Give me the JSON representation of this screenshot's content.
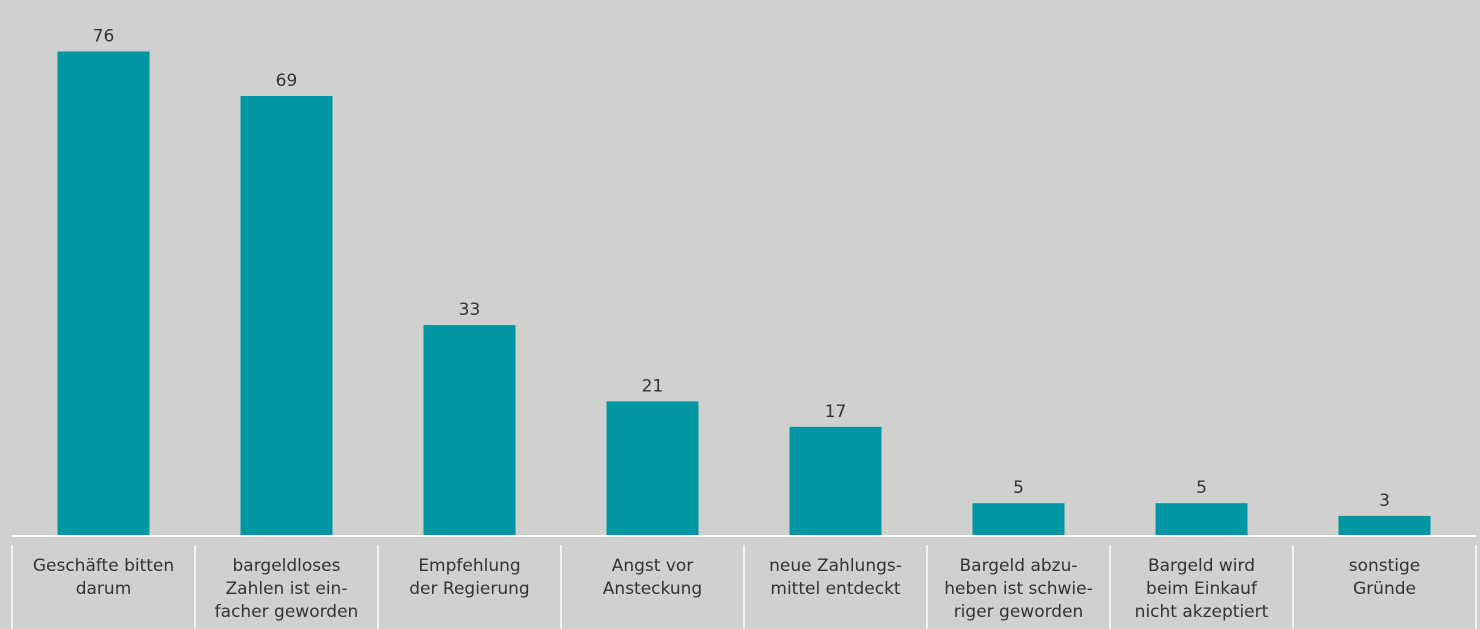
{
  "chart_data": {
    "type": "bar",
    "categories": [
      "Geschäfte bitten\ndarum",
      "bargeldloses\nZahlen ist ein-\nfacher geworden",
      "Empfehlung\nder Regierung",
      "Angst vor\nAnsteckung",
      "neue Zahlungs-\nmittel entdeckt",
      "Bargeld abzu-\nheben ist schwie-\nriger geworden",
      "Bargeld wird\nbeim Einkauf\nnicht akzeptiert",
      "sonstige\nGründe"
    ],
    "values": [
      76,
      69,
      33,
      21,
      17,
      5,
      5,
      3
    ],
    "color": "#0096a4",
    "ylim": [
      0,
      80
    ]
  }
}
